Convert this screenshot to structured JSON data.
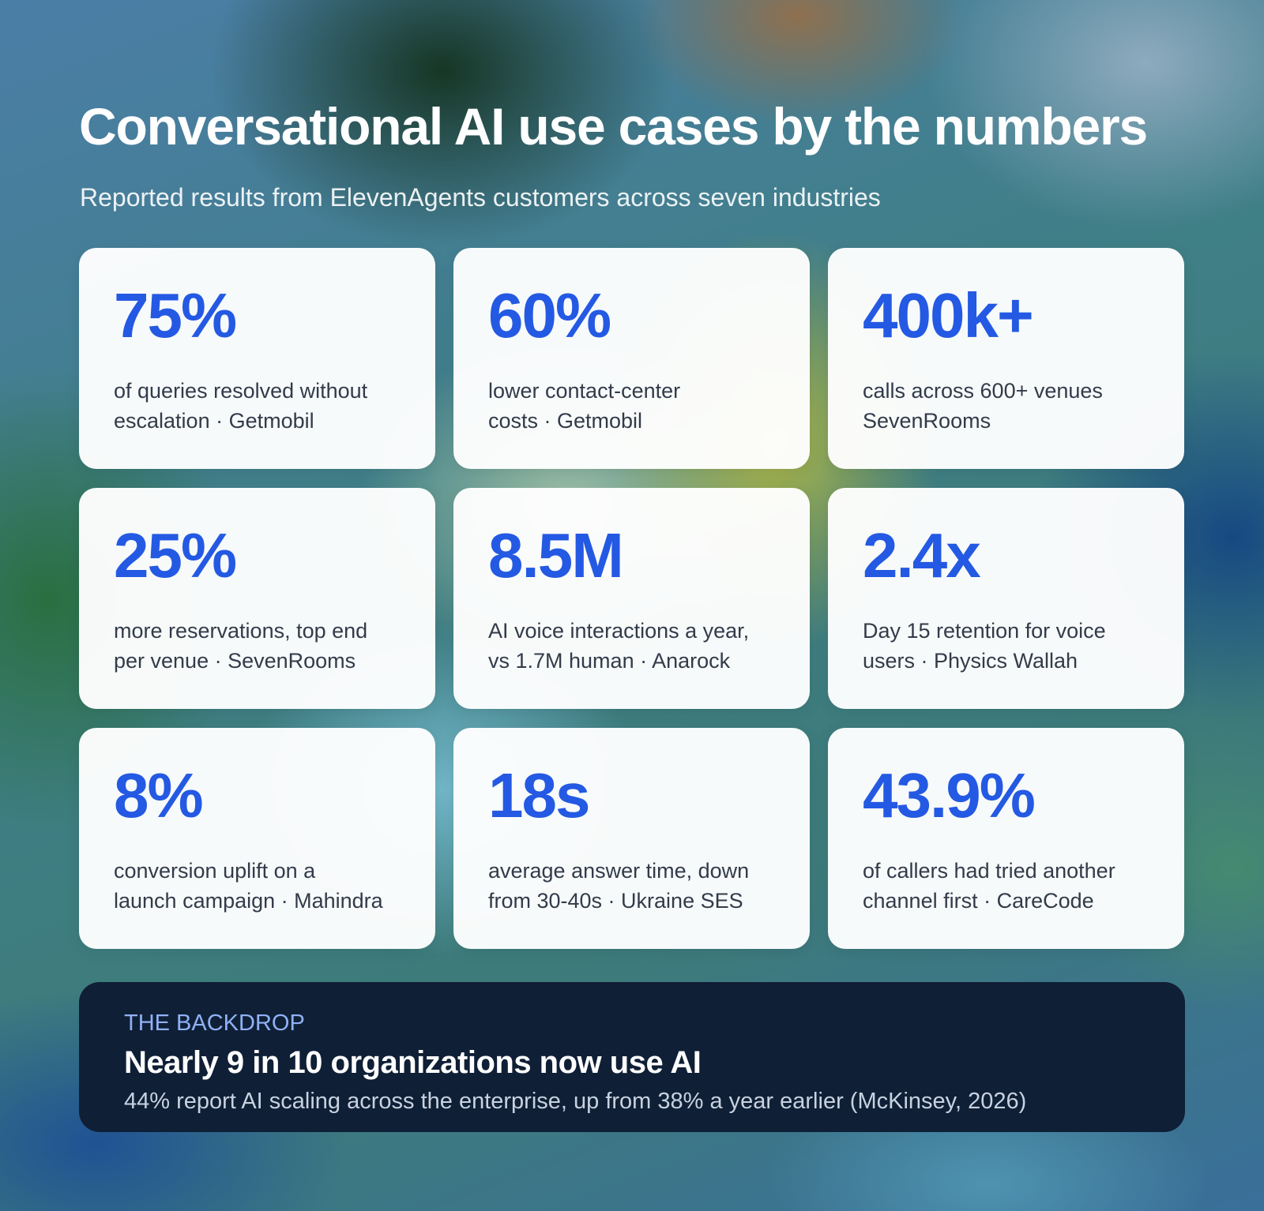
{
  "header": {
    "title": "Conversational AI use cases by the numbers",
    "subtitle": "Reported results from ElevenAgents customers across seven industries"
  },
  "cards": [
    {
      "stat": "75%",
      "lines": [
        "of queries resolved without",
        "escalation · Getmobil"
      ]
    },
    {
      "stat": "60%",
      "lines": [
        "lower contact-center",
        "costs · Getmobil"
      ]
    },
    {
      "stat": "400k+",
      "lines": [
        "calls across 600+ venues",
        "SevenRooms"
      ]
    },
    {
      "stat": "25%",
      "lines": [
        "more reservations, top end",
        "per venue · SevenRooms"
      ]
    },
    {
      "stat": "8.5M",
      "lines": [
        "AI voice interactions a year,",
        "vs 1.7M human · Anarock"
      ]
    },
    {
      "stat": "2.4x",
      "lines": [
        "Day 15 retention for voice",
        "users · Physics Wallah"
      ]
    },
    {
      "stat": "8%",
      "lines": [
        "conversion uplift on a",
        "launch campaign · Mahindra"
      ]
    },
    {
      "stat": "18s",
      "lines": [
        "average answer time, down",
        "from 30-40s · Ukraine SES"
      ]
    },
    {
      "stat": "43.9%",
      "lines": [
        "of callers had tried another",
        "channel first · CareCode"
      ]
    }
  ],
  "backdrop": {
    "eyebrow": "THE BACKDROP",
    "headline": "Nearly 9 in 10 organizations now use AI",
    "detail": "44% report AI scaling across the enterprise, up from 38% a year earlier (McKinsey, 2026)"
  }
}
